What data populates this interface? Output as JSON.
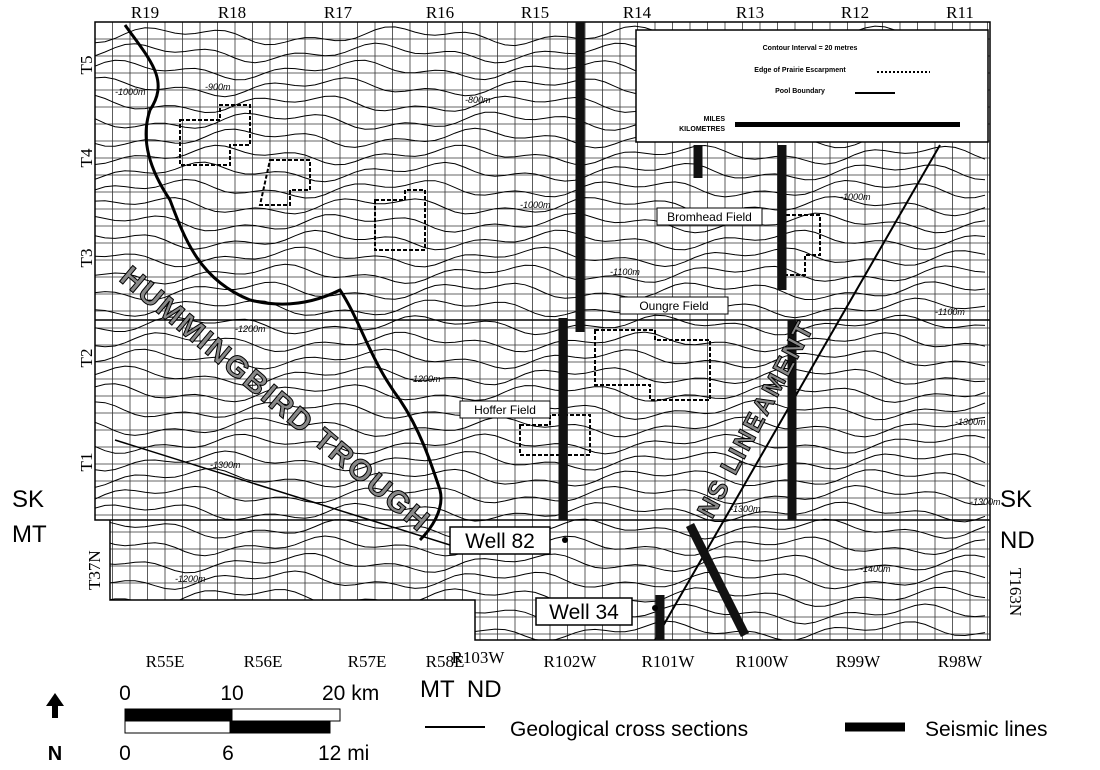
{
  "top_ranges": [
    "R19",
    "R18",
    "R17",
    "R16",
    "R15",
    "R14",
    "R13",
    "R12",
    "R11"
  ],
  "townships": [
    "T5",
    "T4",
    "T3",
    "T2",
    "T1"
  ],
  "left_border": {
    "upper": "SK",
    "lower": "MT"
  },
  "right_border": {
    "upper": "SK",
    "lower": "ND"
  },
  "left_township": "T37N",
  "right_township": "T163N",
  "bottom_ranges_east": [
    "R55E",
    "R56E",
    "R57E",
    "R58E"
  ],
  "bottom_ranges_west": [
    "R103W",
    "R102W",
    "R101W",
    "R100W",
    "R99W",
    "R98W"
  ],
  "state_border": "MT  ND",
  "inset": {
    "contour_interval": "Contour Interval = 20 metres",
    "escarpment": "Edge of Prairie Escarpment",
    "pool_boundary": "Pool Boundary",
    "miles": "MILES",
    "kilometres": "KILOMETRES"
  },
  "fields": [
    "Bromhead Field",
    "Oungre Field",
    "Hoffer Field"
  ],
  "wells": [
    "Well 82",
    "Well 34"
  ],
  "features": [
    "HUMMINGBIRD TROUGH",
    "NS LINEAMENT"
  ],
  "contour_labels": [
    "-1000m",
    "-900m",
    "-800m",
    "-1000m",
    "-1000m",
    "-1100m",
    "-1100m",
    "-1200m",
    "-1200m",
    "-1300m",
    "-1300m",
    "-1300m",
    "-1400m",
    "-1300m",
    "-1200m"
  ],
  "scale": {
    "km": [
      "0",
      "10",
      "20 km"
    ],
    "mi": [
      "0",
      "6",
      "12 mi"
    ],
    "north": "N"
  },
  "legend": {
    "cross_sections": "Geological cross sections",
    "seismic": "Seismic lines"
  }
}
